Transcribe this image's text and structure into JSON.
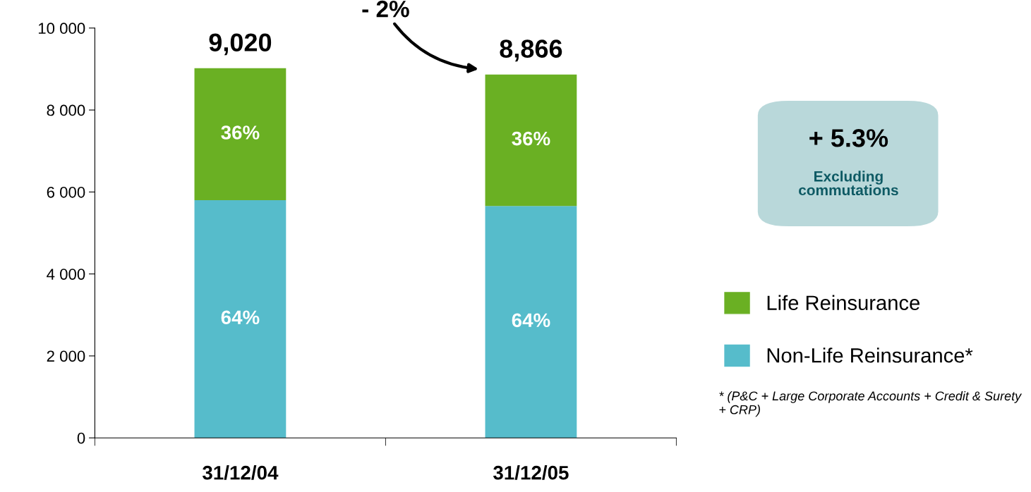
{
  "chart_data": {
    "type": "bar",
    "stacked": true,
    "categories": [
      "31/12/04",
      "31/12/05"
    ],
    "series": [
      {
        "name": "Non-Life Reinsurance*",
        "color": "#56bccb",
        "values": [
          5800,
          5660
        ]
      },
      {
        "name": "Life Reinsurance",
        "color": "#6ab023",
        "values": [
          3220,
          3206
        ]
      }
    ],
    "totals": [
      "9,020",
      "8,866"
    ],
    "ylim": [
      0,
      10000
    ],
    "yticks": [
      {
        "value": 0,
        "label": "0"
      },
      {
        "value": 2000,
        "label": "2 000"
      },
      {
        "value": 4000,
        "label": "4 000"
      },
      {
        "value": 6000,
        "label": "6 000"
      },
      {
        "value": 8000,
        "label": "8 000"
      },
      {
        "value": 10000,
        "label": "10 000"
      }
    ],
    "grid": false,
    "legend": "right",
    "annotations": [
      "- 2%",
      "+ 5.3%",
      "Excluding commutations",
      "* (P&C + Large Corporate Accounts + Credit & Surety + CRP)",
      "64%",
      "64%",
      "36%",
      "36%"
    ]
  }
}
